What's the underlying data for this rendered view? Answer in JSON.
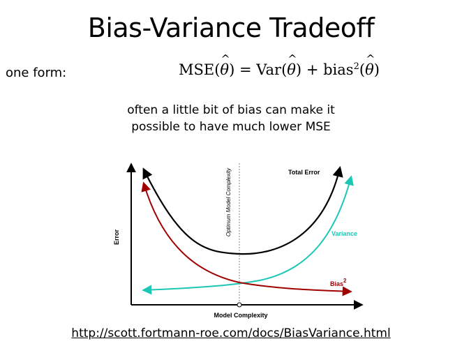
{
  "title": "Bias-Variance Tradeoff",
  "formula": {
    "label": "one form:",
    "mse": "MSE",
    "equals": "=",
    "var": "Var",
    "plus": "+",
    "bias": "bias",
    "exponent": "2",
    "theta": "θ"
  },
  "note": {
    "line1": "often a little bit of bias can make it",
    "line2": "possible to have much lower MSE"
  },
  "diagram": {
    "y_axis_label": "Error",
    "x_axis_label": "Model Complexity",
    "optimum_label": "Optimum Model Complexity",
    "curves": {
      "total_error": {
        "label": "Total Error",
        "color": "#000000"
      },
      "variance": {
        "label": "Variance",
        "color": "#1cc7b6"
      },
      "bias": {
        "label": "Bias",
        "exponent": "2",
        "color": "#a00000"
      }
    },
    "optimum_line_color": "#888888"
  },
  "source_url": "http://scott.fortmann-roe.com/docs/BiasVariance.html"
}
